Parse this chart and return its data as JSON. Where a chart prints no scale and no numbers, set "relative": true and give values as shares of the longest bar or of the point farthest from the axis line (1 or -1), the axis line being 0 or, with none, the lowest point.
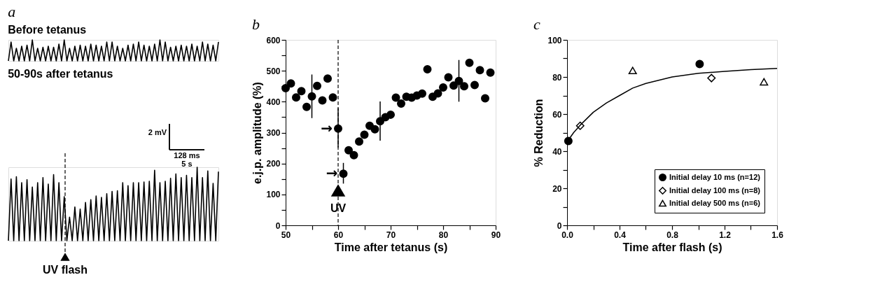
{
  "chart_data": [
    {
      "type": "line",
      "title": "a",
      "subtitle": "Before tetanus",
      "relative": true,
      "tick_labels": false,
      "color": "#000000",
      "categories": [
        null,
        null,
        null,
        null,
        null,
        null,
        null,
        null,
        null,
        null,
        null,
        null,
        null,
        null,
        null,
        null,
        null,
        null,
        null,
        null,
        null,
        null,
        null,
        null,
        null,
        null,
        null,
        null,
        null,
        null,
        null,
        null,
        null,
        null,
        null,
        null,
        null,
        null,
        null,
        null,
        null,
        null,
        null,
        null,
        null,
        null,
        null,
        null,
        null,
        null,
        null,
        null,
        null,
        null,
        null,
        null,
        null,
        null,
        null,
        null,
        null,
        null,
        null,
        null,
        null,
        null,
        null,
        null,
        null,
        null,
        null,
        null,
        null,
        null,
        null,
        null,
        null,
        null,
        null,
        null
      ],
      "values": [
        0,
        0.9,
        0,
        0.6,
        0,
        0.7,
        0,
        0.75,
        0,
        1.0,
        0,
        0.6,
        0,
        0.65,
        0,
        0.7,
        0,
        0.65,
        0,
        0.8,
        0,
        1.0,
        0,
        0.6,
        0,
        0.7,
        0,
        0.75,
        0,
        0.7,
        0,
        0.8,
        0,
        0.75,
        0,
        0.7,
        0,
        0.9,
        0,
        0.9,
        0,
        0.7,
        0,
        0.6,
        0,
        0.75,
        0,
        0.8,
        0,
        0.9,
        0,
        0.75,
        0,
        0.7,
        0,
        0.8,
        0,
        1.0,
        0,
        0.9,
        0,
        0.65,
        0,
        0.7,
        0,
        0.75,
        0,
        0.7,
        0,
        0.8,
        0,
        0.7,
        0,
        0.9,
        0,
        0.8,
        0,
        0.75,
        0,
        0.9
      ]
    },
    {
      "type": "line",
      "subtitle": "50-90s after tetanus",
      "relative": true,
      "tick_labels": false,
      "color": "#000000",
      "categories": [
        null,
        null,
        null,
        null,
        null,
        null,
        null,
        null,
        null,
        null,
        null,
        null,
        null,
        null,
        null,
        null,
        null,
        null,
        null,
        null,
        null,
        null,
        null,
        null,
        null,
        null,
        null,
        null,
        null,
        null,
        null,
        null,
        null,
        null,
        null,
        null,
        null,
        null,
        null,
        null,
        null,
        null,
        null,
        null,
        null,
        null,
        null,
        null,
        null,
        null,
        null,
        null,
        null,
        null,
        null,
        null,
        null,
        null,
        null,
        null,
        null,
        null,
        null,
        null,
        null,
        null,
        null,
        null,
        null,
        null,
        null,
        null,
        null,
        null,
        null,
        null,
        null,
        null,
        null,
        null
      ],
      "values": [
        0,
        0.84,
        0,
        0.87,
        0,
        0.79,
        0,
        0.83,
        0,
        0.73,
        0,
        0.79,
        0,
        0.86,
        0,
        0.77,
        0,
        0.9,
        0,
        0.79,
        0,
        0.6,
        0,
        0.32,
        0,
        0.46,
        0,
        0.43,
        0,
        0.52,
        0,
        0.56,
        0,
        0.61,
        0,
        0.59,
        0,
        0.64,
        0,
        0.67,
        0,
        0.68,
        0,
        0.79,
        0,
        0.75,
        0,
        0.79,
        0,
        0.79,
        0,
        0.8,
        0,
        0.81,
        0,
        0.96,
        0,
        0.79,
        0,
        0.81,
        0,
        0.85,
        0,
        0.91,
        0,
        0.86,
        0,
        0.89,
        0,
        0.86,
        0,
        1.0,
        0,
        0.86,
        0,
        0.95,
        0,
        0.78,
        0,
        0.94
      ],
      "annotations": [
        "UV flash",
        "2 mV",
        "128 ms",
        "5 s"
      ]
    },
    {
      "type": "scatter",
      "title": "b",
      "xlabel": "Time after tetanus (s)",
      "ylabel": "e.j.p. amplitude (%)",
      "marker": "circle",
      "color": "#000000",
      "grid": false,
      "x": [
        50,
        51,
        52,
        53,
        54,
        55,
        56,
        57,
        58,
        59,
        60,
        61,
        62,
        63,
        64,
        65,
        66,
        67,
        68,
        69,
        70,
        71,
        72,
        73,
        74,
        75,
        76,
        77,
        78,
        79,
        80,
        81,
        82,
        83,
        84,
        85,
        86,
        87,
        88,
        89
      ],
      "values": [
        444,
        459,
        414,
        434,
        383,
        417,
        451,
        404,
        475,
        414,
        313,
        167,
        243,
        227,
        271,
        293,
        322,
        311,
        337,
        350,
        358,
        413,
        394,
        416,
        413,
        420,
        426,
        505,
        416,
        427,
        446,
        479,
        452,
        467,
        450,
        526,
        454,
        502,
        411,
        494
      ],
      "errors": [
        null,
        null,
        null,
        null,
        null,
        [
          347,
          488
        ],
        null,
        null,
        null,
        null,
        [
          252,
          379
        ],
        [
          135,
          202
        ],
        null,
        null,
        null,
        null,
        null,
        null,
        [
          274,
          401
        ],
        null,
        null,
        null,
        null,
        null,
        null,
        null,
        null,
        null,
        null,
        null,
        null,
        null,
        null,
        [
          400,
          535
        ],
        null,
        null,
        null,
        null,
        null,
        null
      ],
      "xlim": [
        50,
        90
      ],
      "ylim": [
        0,
        600
      ],
      "xticks": [
        50,
        {
          "value": 55,
          "label": null
        },
        60,
        {
          "value": 65,
          "label": null
        },
        70,
        {
          "value": 75,
          "label": null
        },
        80,
        {
          "value": 85,
          "label": null
        },
        90
      ],
      "yticks": [
        0,
        {
          "value": 50,
          "label": null
        },
        100,
        {
          "value": 150,
          "label": null
        },
        200,
        {
          "value": 250,
          "label": null
        },
        300,
        {
          "value": 350,
          "label": null
        },
        400,
        {
          "value": 450,
          "label": null
        },
        500,
        {
          "value": 550,
          "label": null
        },
        600
      ],
      "ref_lines": [
        {
          "axis": "x",
          "value": 60,
          "label": "UV",
          "line_style": "dashed"
        }
      ],
      "annotations": [
        {
          "text": "→",
          "x": 60,
          "y": 313
        },
        {
          "text": "→",
          "x": 61,
          "y": 167
        }
      ]
    },
    {
      "type": "scatter",
      "title": "c",
      "xlabel": "Time after flash (s)",
      "ylabel": "% Reduction",
      "grid": false,
      "legend": "bottom right",
      "xlim": [
        0,
        1.6
      ],
      "ylim": [
        0,
        100
      ],
      "xticks": [
        {
          "value": 0,
          "label": "0.0"
        },
        {
          "value": 0.2,
          "label": null
        },
        0.4,
        {
          "value": 0.6,
          "label": null
        },
        0.8,
        {
          "value": 1.0,
          "label": null
        },
        1.2,
        {
          "value": 1.4,
          "label": null
        },
        1.6
      ],
      "yticks": [
        0,
        {
          "value": 10,
          "label": null
        },
        20,
        {
          "value": 30,
          "label": null
        },
        40,
        {
          "value": 50,
          "label": null
        },
        60,
        {
          "value": 70,
          "label": null
        },
        80,
        {
          "value": 90,
          "label": null
        },
        100
      ],
      "series": [
        {
          "name": "Initial delay 10 ms (n=12)",
          "color": "#000000",
          "marker": "circle",
          "x": [
            0.01,
            1.01
          ],
          "values": [
            45.5,
            87
          ]
        },
        {
          "name": "Initial delay 100 ms (n=8)",
          "color": "#000000",
          "marker": "diamond",
          "x": [
            0.1,
            1.1
          ],
          "values": [
            53.7,
            79.4
          ]
        },
        {
          "name": "Initial delay 500 ms (n=6)",
          "color": "#000000",
          "marker": "triangle",
          "x": [
            0.5,
            1.5
          ],
          "values": [
            83.5,
            77.4
          ]
        },
        {
          "type": "line",
          "color": "#000000",
          "marker": "none",
          "x": [
            0,
            0.05,
            0.1,
            0.2,
            0.3,
            0.4,
            0.5,
            0.6,
            0.8,
            1.0,
            1.2,
            1.4,
            1.6
          ],
          "values": [
            45,
            50,
            54,
            61,
            66,
            70,
            74,
            76.5,
            80,
            82,
            83,
            84,
            84.6
          ]
        }
      ]
    }
  ]
}
